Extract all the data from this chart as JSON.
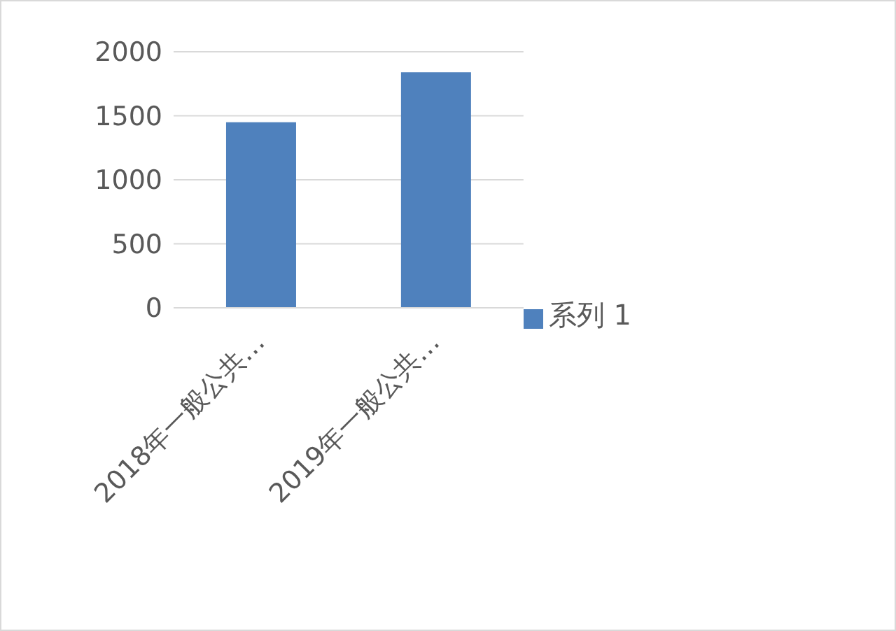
{
  "chart_data": {
    "type": "bar",
    "categories": [
      "2018年一般公共…",
      "2019年一般公共…"
    ],
    "series": [
      {
        "name": "系列 1",
        "color": "#4f81bd",
        "values": [
          1450,
          1840
        ]
      }
    ],
    "ylim": [
      0,
      2000
    ],
    "yticks": [
      0,
      500,
      1000,
      1500,
      2000
    ],
    "grid": "y",
    "legend": "right"
  }
}
